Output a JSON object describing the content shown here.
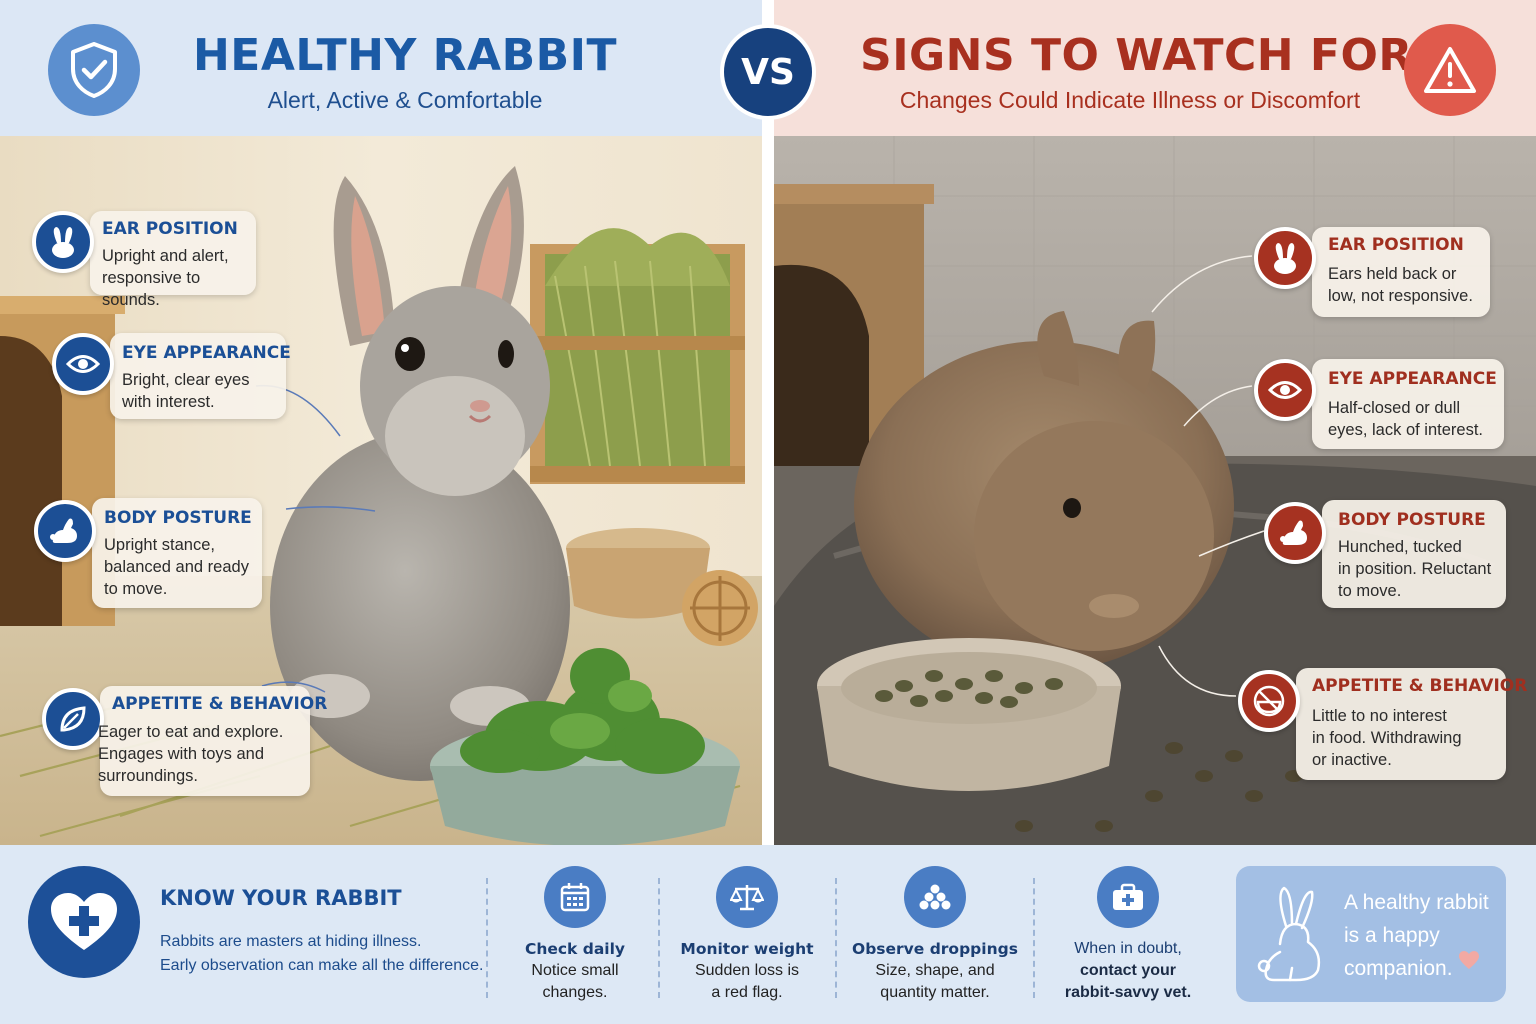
{
  "header": {
    "left_title": "HEALTHY RABBIT",
    "left_subtitle": "Alert, Active & Comfortable",
    "vs": "VS",
    "right_title": "SIGNS TO WATCH FOR",
    "right_subtitle": "Changes Could Indicate Illness or Discomfort"
  },
  "healthy": [
    {
      "icon": "rabbit-ears-icon",
      "title": "EAR POSITION",
      "body": "Upright and alert,\nresponsive to sounds."
    },
    {
      "icon": "eye-icon",
      "title": "EYE APPEARANCE",
      "body": "Bright, clear eyes\nwith interest."
    },
    {
      "icon": "rabbit-icon",
      "title": "BODY POSTURE",
      "body": "Upright stance,\nbalanced and ready\nto move."
    },
    {
      "icon": "leaf-icon",
      "title": "APPETITE & BEHAVIOR",
      "body": "Eager to eat and explore.\nEngages with toys and\nsurroundings."
    }
  ],
  "warning": [
    {
      "icon": "rabbit-ears-icon",
      "title": "EAR POSITION",
      "body": "Ears held back or\nlow, not responsive."
    },
    {
      "icon": "eye-icon",
      "title": "EYE APPEARANCE",
      "body": "Half-closed or dull\neyes, lack of interest."
    },
    {
      "icon": "rabbit-icon",
      "title": "BODY POSTURE",
      "body": "Hunched, tucked\nin position. Reluctant\nto move."
    },
    {
      "icon": "no-food-icon",
      "title": "APPETITE & BEHAVIOR",
      "body": "Little to no interest\nin food. Withdrawing\nor inactive."
    }
  ],
  "bottom": {
    "title": "KNOW YOUR RABBIT",
    "body": "Rabbits are masters at hiding illness.\nEarly observation can make all the difference.",
    "tips": [
      {
        "icon": "calendar-icon",
        "title": "Check daily",
        "body": "Notice small\nchanges."
      },
      {
        "icon": "scale-icon",
        "title": "Monitor weight",
        "body": "Sudden loss is\na red flag."
      },
      {
        "icon": "droppings-icon",
        "title": "Observe droppings",
        "body": "Size, shape, and\nquantity matter."
      },
      {
        "icon": "medical-kit-icon",
        "title": "When in doubt,",
        "body": "contact your\nrabbit-savvy vet."
      }
    ],
    "closing": "A healthy rabbit\nis a happy\ncompanion."
  },
  "colors": {
    "healthy_accent": "#1b5aa5",
    "warning_accent": "#a8301f",
    "vs_badge": "#17417e"
  }
}
